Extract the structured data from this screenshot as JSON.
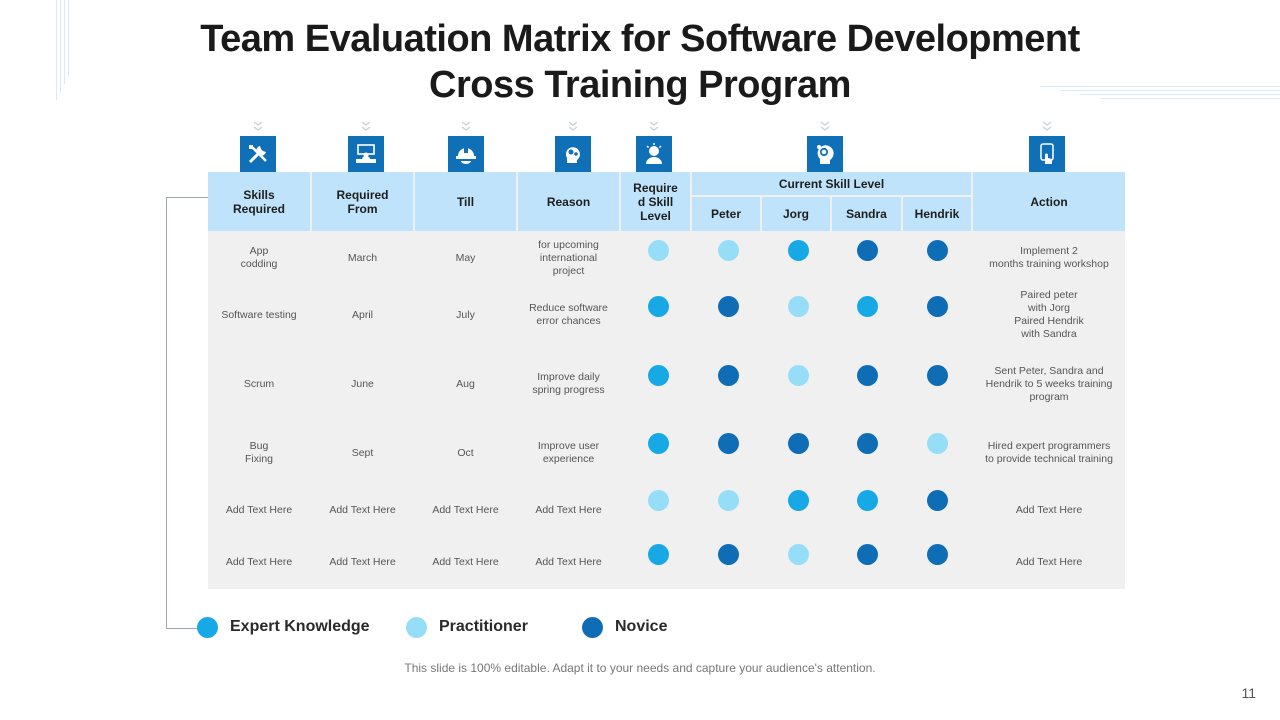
{
  "title_line1": "Team Evaluation Matrix for Software Development",
  "title_line2": "Cross Training Program",
  "colors": {
    "expert": "#17a9e6",
    "practitioner": "#96def7",
    "novice": "#0f6db5",
    "header": "#bfe3fb",
    "icon": "#0f70b7"
  },
  "icons": [
    "tools-icon",
    "presenter-desk-icon",
    "hardhat-icon",
    "brain-gears-icon",
    "person-idea-icon",
    "head-gear-icon",
    "touch-hand-icon"
  ],
  "headers": {
    "skills": "Skills\nRequired",
    "from": "Required\nFrom",
    "till": "Till",
    "reason": "Reason",
    "required_level": "Require\nd Skill\nLevel",
    "current_level": "Current Skill Level",
    "peter": "Peter",
    "jorg": "Jorg",
    "sandra": "Sandra",
    "hendrik": "Hendrik",
    "action": "Action"
  },
  "rows": [
    {
      "skill": "App\ncodding",
      "from": "March",
      "till": "May",
      "reason": "for upcoming\ninternational\nproject",
      "levels": [
        "practitioner",
        "practitioner",
        "expert",
        "novice",
        "novice"
      ],
      "action": "Implement  2\nmonths training workshop"
    },
    {
      "skill": "Software testing",
      "from": "April",
      "till": "July",
      "reason": "Reduce software\nerror chances",
      "levels": [
        "expert",
        "novice",
        "practitioner",
        "expert",
        "novice"
      ],
      "action": "Paired peter\nwith Jorg\nPaired Hendrik\nwith Sandra"
    },
    {
      "skill": "Scrum",
      "from": "June",
      "till": "Aug",
      "reason": "Improve daily\nspring progress",
      "levels": [
        "expert",
        "novice",
        "practitioner",
        "novice",
        "novice"
      ],
      "action": "Sent Peter, Sandra and\nHendrik to 5 weeks training\nprogram"
    },
    {
      "skill": "Bug\nFixing",
      "from": "Sept",
      "till": "Oct",
      "reason": "Improve user\nexperience",
      "levels": [
        "expert",
        "novice",
        "novice",
        "novice",
        "practitioner"
      ],
      "action": "Hired expert programmers\nto provide technical training"
    },
    {
      "skill": "Add Text Here",
      "from": "Add Text Here",
      "till": "Add Text Here",
      "reason": "Add Text Here",
      "levels": [
        "practitioner",
        "practitioner",
        "expert",
        "expert",
        "novice"
      ],
      "action": "Add Text Here"
    },
    {
      "skill": "Add Text Here",
      "from": "Add Text Here",
      "till": "Add Text Here",
      "reason": "Add Text Here",
      "levels": [
        "expert",
        "novice",
        "practitioner",
        "novice",
        "novice"
      ],
      "action": "Add Text Here"
    }
  ],
  "legend": {
    "expert": "Expert Knowledge",
    "practitioner": "Practitioner",
    "novice": "Novice"
  },
  "footnote": "This slide is 100% editable. Adapt it to your needs and capture your audience's attention.",
  "page_number": "11"
}
